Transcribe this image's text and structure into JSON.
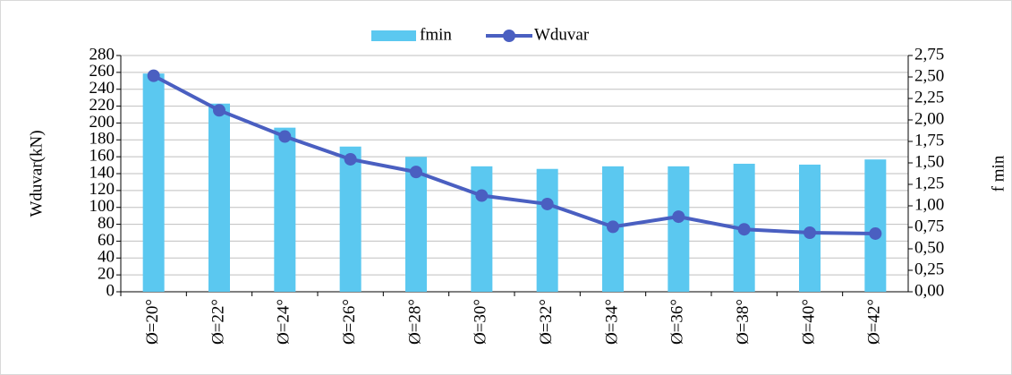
{
  "chart_data": {
    "type": "bar_line",
    "categories": [
      "Ø=20°",
      "Ø=22°",
      "Ø=24°",
      "Ø=26°",
      "Ø=28°",
      "Ø=30°",
      "Ø=32°",
      "Ø=34°",
      "Ø=36°",
      "Ø=38°",
      "Ø=40°",
      "Ø=42°"
    ],
    "series": [
      {
        "name": "fmin",
        "type": "bar",
        "axis": "y2",
        "color": "#5bc8f0",
        "values": [
          2.54,
          2.19,
          1.91,
          1.69,
          1.57,
          1.46,
          1.43,
          1.46,
          1.46,
          1.49,
          1.48,
          1.54
        ]
      },
      {
        "name": "Wduvar",
        "type": "line",
        "axis": "y",
        "color": "#4a5fc1",
        "values": [
          256,
          215,
          184,
          157,
          142,
          114,
          104,
          77,
          89,
          74,
          70,
          69
        ]
      }
    ],
    "ylabel": "Wduvar(kN)",
    "y2label": "f min",
    "ylim": [
      0,
      280
    ],
    "yticks": [
      0,
      20,
      40,
      60,
      80,
      100,
      120,
      140,
      160,
      180,
      200,
      220,
      240,
      260,
      280
    ],
    "y2lim": [
      0,
      2.75
    ],
    "y2ticks": [
      {
        "value": 0,
        "label": "0,00"
      },
      {
        "value": 0.25,
        "label": "0,25"
      },
      {
        "value": 0.5,
        "label": "0,50"
      },
      {
        "value": 0.75,
        "label": "0,75"
      },
      {
        "value": 1,
        "label": "1,00"
      },
      {
        "value": 1.25,
        "label": "1,25"
      },
      {
        "value": 1.5,
        "label": "1,50"
      },
      {
        "value": 1.75,
        "label": "1,75"
      },
      {
        "value": 2,
        "label": "2,00"
      },
      {
        "value": 2.25,
        "label": "2,25"
      },
      {
        "value": 2.5,
        "label": "2,50"
      },
      {
        "value": 2.75,
        "label": "2,75"
      }
    ],
    "grid": true,
    "legend": "top"
  }
}
